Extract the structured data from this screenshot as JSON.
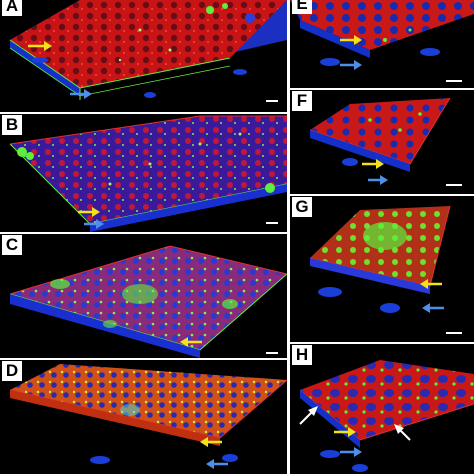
{
  "figure": {
    "panels": [
      {
        "id": "A",
        "label": "A"
      },
      {
        "id": "B",
        "label": "B"
      },
      {
        "id": "C",
        "label": "C"
      },
      {
        "id": "D",
        "label": "D"
      },
      {
        "id": "E",
        "label": "E"
      },
      {
        "id": "F",
        "label": "F"
      },
      {
        "id": "G",
        "label": "G"
      },
      {
        "id": "H",
        "label": "H"
      }
    ],
    "colors": {
      "background": "#000000",
      "membrane_red": "#d01818",
      "nuclei_blue": "#1a3fd8",
      "marker_green": "#5cf03c",
      "arrow_yellow": "#f2e21a",
      "arrow_blue": "#4f8fe8",
      "arrow_white": "#ffffff",
      "scale_bar": "#ffffff"
    }
  }
}
